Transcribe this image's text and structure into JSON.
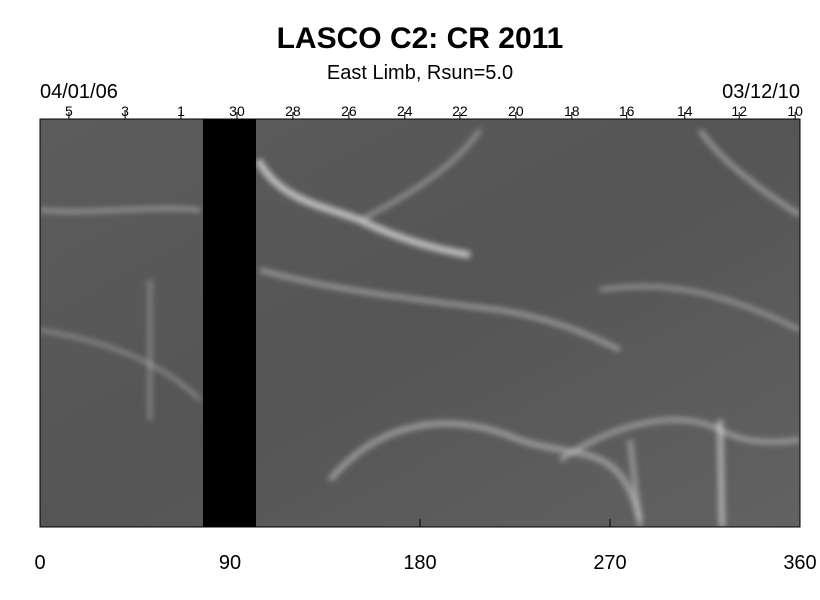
{
  "chart_data": {
    "type": "synoptic-map",
    "title": "LASCO C2: CR 2011",
    "subtitle": "East Limb, Rsun=5.0",
    "start_label": "04/01/06",
    "end_label": "03/12/10",
    "xlim": [
      0,
      360
    ],
    "xticks": [
      0,
      90,
      180,
      270,
      360
    ],
    "x2ticks": [
      {
        "value": 13.7,
        "label": "5"
      },
      {
        "value": 40.3,
        "label": "3"
      },
      {
        "value": 66.8,
        "label": "1"
      },
      {
        "value": 93.3,
        "label": "30"
      },
      {
        "value": 119.8,
        "label": "28"
      },
      {
        "value": 146.3,
        "label": "26"
      },
      {
        "value": 172.8,
        "label": "24"
      },
      {
        "value": 198.9,
        "label": "22"
      },
      {
        "value": 225.4,
        "label": "20"
      },
      {
        "value": 251.9,
        "label": "18"
      },
      {
        "value": 277.9,
        "label": "16"
      },
      {
        "value": 305.4,
        "label": "14"
      },
      {
        "value": 331.2,
        "label": "12"
      },
      {
        "value": 357.7,
        "label": "10"
      }
    ],
    "gaps": [
      [
        77.2,
        102.3
      ]
    ]
  }
}
